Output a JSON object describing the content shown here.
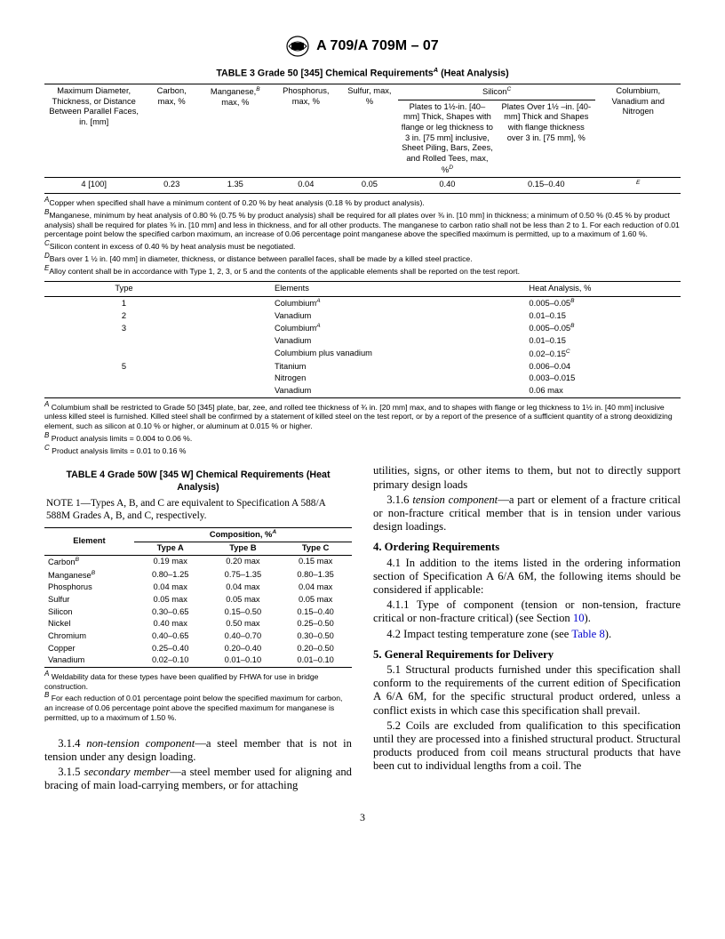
{
  "header": {
    "doc_id": "A 709/A 709M – 07"
  },
  "table3": {
    "title_prefix": "TABLE 3  Grade 50 [345] Chemical Requirements",
    "title_super": "A",
    "title_suffix": " (Heat Analysis)",
    "group_silicon": "Silicon",
    "group_silicon_super": "C",
    "group_cvn": "Columbium, Vanadium and Nitrogen",
    "h1": "Maximum Diameter, Thickness, or Distance Between Parallel Faces, in. [mm]",
    "h2": "Carbon, max, %",
    "h3a": "Manganese,",
    "h3_super": "B",
    "h3b": " max, %",
    "h4": "Phosphorus, max, %",
    "h5": "Sulfur, max, %",
    "h6a": "Plates to 1½-in. [40–mm] Thick, Shapes with flange or leg thickness to 3 in. [75 mm] inclusive, Sheet Piling, Bars, Zees, and Rolled Tees, max, %",
    "h6_super": "D",
    "h7": "Plates Over 1½ –in. [40-mm] Thick and Shapes with flange thickness over 3 in. [75 mm], %",
    "row": {
      "c1": "4 [100]",
      "c2": "0.23",
      "c3": "1.35",
      "c4": "0.04",
      "c5": "0.05",
      "c6": "0.40",
      "c7": "0.15–0.40",
      "c8_super": "E"
    },
    "fn_a_sup": "A",
    "fn_a": "Copper when specified shall have a minimum content of 0.20 % by heat analysis (0.18 % by product analysis).",
    "fn_b_sup": "B",
    "fn_b": "Manganese, minimum by heat analysis of 0.80 % (0.75 % by product analysis) shall be required for all plates over ⅜ in. [10 mm] in thickness; a minimum of 0.50 % (0.45 % by product analysis) shall be required for plates ⅜ in. [10 mm] and less in thickness, and for all other products. The manganese to carbon ratio shall not be less than 2 to 1. For each reduction of 0.01 percentage point below the specified carbon maximum, an increase of 0.06 percentage point manganese above the specified maximum is permitted, up to a maximum of 1.60 %.",
    "fn_c_sup": "C",
    "fn_c": "Silicon content in excess of 0.40 % by heat analysis must be negotiated.",
    "fn_d_sup": "D",
    "fn_d": "Bars over 1 ½ in. [40 mm] in diameter, thickness, or distance between parallel faces, shall be made by a killed steel practice.",
    "fn_e_sup": "E",
    "fn_e": "Alloy content shall be in accordance with Type 1, 2, 3, or 5 and the contents of the applicable elements shall be reported on the test report."
  },
  "type_table": {
    "h_type": "Type",
    "h_elem": "Elements",
    "h_heat": "Heat Analysis, %",
    "rows": [
      {
        "type": "1",
        "elem": "Columbium",
        "elem_sup": "A",
        "heat": "0.005–0.05",
        "heat_sup": "B"
      },
      {
        "type": "2",
        "elem": "Vanadium",
        "elem_sup": "",
        "heat": "0.01–0.15",
        "heat_sup": ""
      },
      {
        "type": "3",
        "elem": "Columbium",
        "elem_sup": "A",
        "heat": "0.005–0.05",
        "heat_sup": "B"
      },
      {
        "type": "",
        "elem": "Vanadium",
        "elem_sup": "",
        "heat": "0.01–0.15",
        "heat_sup": ""
      },
      {
        "type": "",
        "elem": "Columbium plus vanadium",
        "elem_sup": "",
        "heat": "0.02–0.15",
        "heat_sup": "C"
      },
      {
        "type": "5",
        "elem": "Titanium",
        "elem_sup": "",
        "heat": "0.006–0.04",
        "heat_sup": ""
      },
      {
        "type": "",
        "elem": "Nitrogen",
        "elem_sup": "",
        "heat": "0.003–0.015",
        "heat_sup": ""
      },
      {
        "type": "",
        "elem": "Vanadium",
        "elem_sup": "",
        "heat": "0.06 max",
        "heat_sup": ""
      }
    ],
    "fn_a_sup": "A",
    "fn_a": " Columbium shall be restricted to Grade 50 [345] plate, bar, zee, and rolled tee thickness of ¾ in. [20 mm] max, and to shapes with flange or leg thickness to 1½ in. [40 mm] inclusive unless killed steel is furnished. Killed steel shall be confirmed by a statement of killed steel on the test report, or by a report of the presence of a sufficient quantity of a strong deoxidizing element, such as silicon at 0.10 % or higher, or aluminum at 0.015 % or higher.",
    "fn_b_sup": "B",
    "fn_b": " Product analysis limits = 0.004 to 0.06 %.",
    "fn_c_sup": "C",
    "fn_c": " Product analysis limits = 0.01 to 0.16 %"
  },
  "table4": {
    "title": "TABLE 4   Grade 50W [345 W] Chemical Requirements (Heat Analysis)",
    "note_label": "NOTE",
    "note_text": " 1—Types A, B, and C are equivalent to Specification A 588/A 588M Grades A, B, and C, respectively.",
    "h_elem": "Element",
    "h_comp": "Composition, %",
    "h_comp_sup": "A",
    "h_a": "Type A",
    "h_b": "Type B",
    "h_c": "Type C",
    "rows": [
      {
        "e": "Carbon",
        "e_sup": "B",
        "a": "0.19 max",
        "b": "0.20 max",
        "c": "0.15 max"
      },
      {
        "e": "Manganese",
        "e_sup": "B",
        "a": "0.80–1.25",
        "b": "0.75–1.35",
        "c": "0.80–1.35"
      },
      {
        "e": "Phosphorus",
        "e_sup": "",
        "a": "0.04 max",
        "b": "0.04 max",
        "c": "0.04 max"
      },
      {
        "e": "Sulfur",
        "e_sup": "",
        "a": "0.05 max",
        "b": "0.05 max",
        "c": "0.05 max"
      },
      {
        "e": "Silicon",
        "e_sup": "",
        "a": "0.30–0.65",
        "b": "0.15–0.50",
        "c": "0.15–0.40"
      },
      {
        "e": "Nickel",
        "e_sup": "",
        "a": "0.40 max",
        "b": "0.50 max",
        "c": "0.25–0.50"
      },
      {
        "e": "Chromium",
        "e_sup": "",
        "a": "0.40–0.65",
        "b": "0.40–0.70",
        "c": "0.30–0.50"
      },
      {
        "e": "Copper",
        "e_sup": "",
        "a": "0.25–0.40",
        "b": "0.20–0.40",
        "c": "0.20–0.50"
      },
      {
        "e": "Vanadium",
        "e_sup": "",
        "a": "0.02–0.10",
        "b": "0.01–0.10",
        "c": "0.01–0.10"
      }
    ],
    "fn_a_sup": "A",
    "fn_a": " Weldability data for these types have been qualified by FHWA for use in bridge construction.",
    "fn_b_sup": "B",
    "fn_b": " For each reduction of 0.01 percentage point below the specified maximum for carbon, an increase of 0.06 percentage point above the specified maximum for manganese is permitted, up to a maximum of 1.50 %."
  },
  "body": {
    "p_314": "3.1.4 non-tension component—a steel member that is not in tension under any design loading.",
    "p_315": "3.1.5 secondary member—a steel member used for aligning and bracing of main load-carrying members, or for attaching",
    "p_315b": "utilities, signs, or other items to them, but not to directly support primary design loads",
    "p_316": "3.1.6 tension component—a part or element of a fracture critical or non-fracture critical member that is in tension under various design loadings.",
    "s4": "4. Ordering Requirements",
    "p_41": "4.1 In addition to the items listed in the ordering information section of Specification A 6/A 6M, the following items should be considered if applicable:",
    "p_411": "4.1.1 Type of component (tension or non-tension, fracture critical or non-fracture critical) (see Section 10).",
    "p_42a": "4.2 Impact testing temperature zone (see ",
    "p_42_link": "Table 8",
    "p_42b": ").",
    "s5": "5. General Requirements for Delivery",
    "p_51": "5.1 Structural products furnished under this specification shall conform to the requirements of the current edition of Specification A 6/A 6M, for the specific structural product ordered, unless a conflict exists in which case this specification shall prevail.",
    "p_52": "5.2 Coils are excluded from qualification to this specification until they are processed into a finished structural product. Structural products produced from coil means structural products that have been cut to individual lengths from a coil. The"
  },
  "page_number": "3"
}
